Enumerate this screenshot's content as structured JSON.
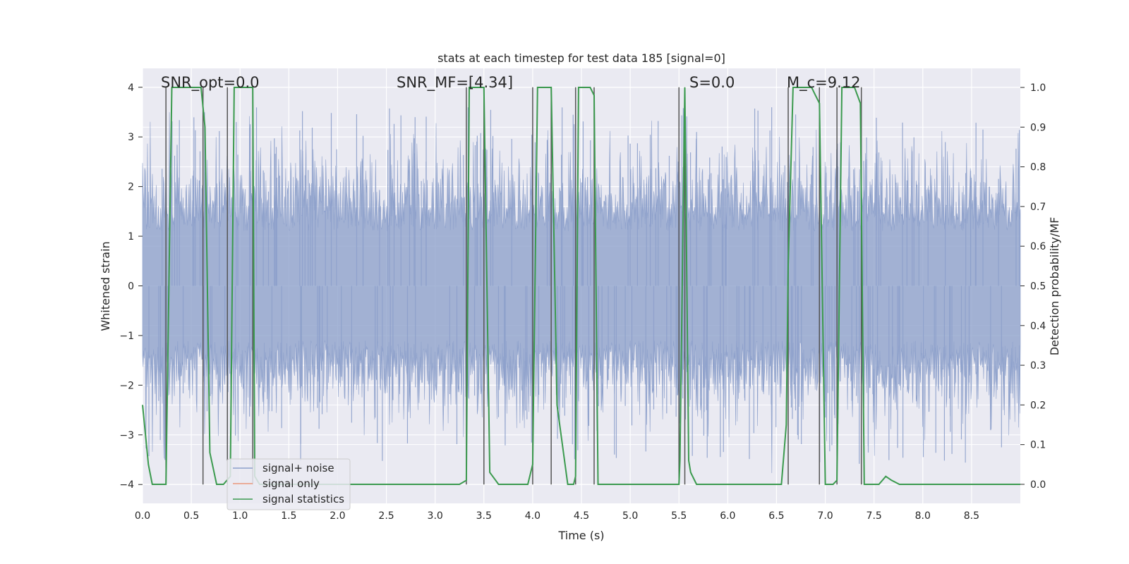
{
  "chart_data": {
    "type": "line",
    "title": "stats at each timestep for test data 185 [signal=0]",
    "xlabel": "Time (s)",
    "ylabel_left": "Whitened strain",
    "ylabel_right": "Detection probability/MF",
    "xlim": [
      0,
      9.0
    ],
    "ylim_left": [
      -4.38,
      4.38
    ],
    "ylim_right": [
      -0.048,
      1.048
    ],
    "x_ticks": [
      0.0,
      0.5,
      1.0,
      1.5,
      2.0,
      2.5,
      3.0,
      3.5,
      4.0,
      4.5,
      5.0,
      5.5,
      6.0,
      6.5,
      7.0,
      7.5,
      8.0,
      8.5
    ],
    "x_tick_labels": [
      "0.0",
      "0.5",
      "1.0",
      "1.5",
      "2.0",
      "2.5",
      "3.0",
      "3.5",
      "4.0",
      "4.5",
      "5.0",
      "5.5",
      "6.0",
      "6.5",
      "7.0",
      "7.5",
      "8.0",
      "8.5"
    ],
    "y_left_ticks": [
      4,
      3,
      2,
      1,
      0,
      -1,
      -2,
      -3,
      -4
    ],
    "y_left_tick_labels": [
      "4",
      "3",
      "2",
      "1",
      "0",
      "−1",
      "−2",
      "−3",
      "−4"
    ],
    "y_right_ticks": [
      1.0,
      0.9,
      0.8,
      0.7,
      0.6,
      0.5,
      0.4,
      0.3,
      0.2,
      0.1,
      0.0
    ],
    "y_right_tick_labels": [
      "1.0",
      "0.9",
      "0.8",
      "0.7",
      "0.6",
      "0.5",
      "0.4",
      "0.3",
      "0.2",
      "0.1",
      "0.0"
    ],
    "annotations": [
      {
        "text": "SNR_opt=0.0",
        "x": 0.2,
        "y": 4.1
      },
      {
        "text": "SNR_MF=[4.34]",
        "x": 2.6,
        "y": 4.1
      },
      {
        "text": "S=0.0",
        "x": 5.6,
        "y": 4.1
      },
      {
        "text": "M_c=9.12",
        "x": 6.6,
        "y": 4.1
      }
    ],
    "legend": {
      "position": "lower-left",
      "entries": [
        {
          "label": "signal+ noise",
          "color": "#8da0cb"
        },
        {
          "label": "signal only",
          "color": "#e9967a"
        },
        {
          "label": "signal statistics",
          "color": "#3b9a4e"
        }
      ]
    },
    "noise_envelope": {
      "typical_range": [
        -2.0,
        2.0
      ],
      "max_abs": 4.0,
      "color": "#8da0cb"
    },
    "detection_boundaries_s": [
      0.24,
      0.62,
      0.87,
      1.13,
      3.32,
      3.5,
      4.0,
      4.19,
      4.44,
      4.63,
      5.5,
      5.56,
      6.62,
      6.94,
      7.12,
      7.37
    ],
    "series": [
      {
        "name": "signal statistics",
        "axis": "right",
        "color": "#3b9a4e",
        "x": [
          0.0,
          0.06,
          0.1,
          0.24,
          0.3,
          0.6,
          0.64,
          0.69,
          0.76,
          0.83,
          0.9,
          0.94,
          1.13,
          1.15,
          1.2,
          3.25,
          3.32,
          3.35,
          3.5,
          3.56,
          3.62,
          3.65,
          3.95,
          4.0,
          4.05,
          4.19,
          4.25,
          4.36,
          4.42,
          4.44,
          4.47,
          4.59,
          4.63,
          4.67,
          5.5,
          5.51,
          5.56,
          5.6,
          5.62,
          5.68,
          6.55,
          6.6,
          6.62,
          6.67,
          6.86,
          6.9,
          6.94,
          7.0,
          7.08,
          7.12,
          7.17,
          7.3,
          7.36,
          7.4,
          7.55,
          7.62,
          7.68,
          7.76,
          9.0
        ],
        "y": [
          0.2,
          0.05,
          0.0,
          0.0,
          1.0,
          1.0,
          0.9,
          0.08,
          0.0,
          0.0,
          0.02,
          1.0,
          1.0,
          0.02,
          0.0,
          0.0,
          0.01,
          1.0,
          1.0,
          0.03,
          0.01,
          0.0,
          0.0,
          0.05,
          1.0,
          1.0,
          0.2,
          0.0,
          0.0,
          0.02,
          1.0,
          1.0,
          0.98,
          0.0,
          0.0,
          0.06,
          1.0,
          0.06,
          0.03,
          0.0,
          0.0,
          0.15,
          0.55,
          1.0,
          1.0,
          0.98,
          0.96,
          0.0,
          0.0,
          0.01,
          1.0,
          1.0,
          0.96,
          0.0,
          0.0,
          0.02,
          0.01,
          0.0,
          0.0
        ]
      }
    ]
  }
}
